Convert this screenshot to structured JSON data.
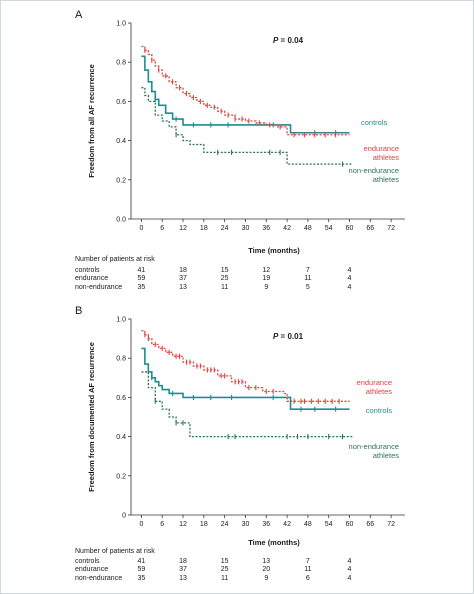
{
  "chart_data": [
    {
      "type": "line",
      "panel_label": "A",
      "title": "P = 0.04",
      "title_italic": "P",
      "title_rest": " = 0.04",
      "xlabel": "Time (months)",
      "ylabel": "Freedom from all AF recurrence",
      "xlim": [
        -3,
        76
      ],
      "ylim": [
        0,
        1.0
      ],
      "xticks": [
        0,
        6,
        12,
        18,
        24,
        30,
        36,
        42,
        48,
        54,
        60,
        66,
        72
      ],
      "yticks": [
        0.0,
        0.2,
        0.4,
        0.6,
        0.8,
        1.0
      ],
      "ytick_labels": [
        "0.0",
        "0.2",
        "0.4",
        "0.6",
        "0.8",
        "1.0"
      ],
      "series": [
        {
          "name": "controls",
          "color": "#1e8c93",
          "dash": "none",
          "width": 1.6,
          "label_lines": [
            "controls"
          ],
          "x": [
            0,
            1,
            2,
            3,
            4,
            5,
            7,
            9,
            12,
            41,
            43,
            60
          ],
          "y": [
            0.83,
            0.76,
            0.7,
            0.65,
            0.61,
            0.58,
            0.54,
            0.51,
            0.48,
            0.48,
            0.44,
            0.44
          ],
          "censored_x": [
            4,
            10,
            15,
            20,
            25,
            38,
            50,
            56
          ],
          "censored_y": [
            0.61,
            0.51,
            0.48,
            0.48,
            0.48,
            0.48,
            0.44,
            0.44
          ]
        },
        {
          "name": "endurance athletes",
          "color": "#e0423f",
          "dash": "2 1.6",
          "width": 1.3,
          "label_lines": [
            "endurance",
            "athletes"
          ],
          "x": [
            0,
            1,
            2,
            3,
            4,
            5,
            6,
            8,
            10,
            12,
            14,
            16,
            18,
            20,
            22,
            24,
            27,
            30,
            33,
            36,
            39,
            42,
            60
          ],
          "y": [
            0.88,
            0.86,
            0.84,
            0.81,
            0.78,
            0.76,
            0.73,
            0.7,
            0.67,
            0.64,
            0.62,
            0.6,
            0.58,
            0.57,
            0.55,
            0.53,
            0.51,
            0.5,
            0.49,
            0.48,
            0.47,
            0.43,
            0.43
          ],
          "censored_x": [
            1,
            3,
            5,
            7,
            9,
            11,
            13,
            15,
            17,
            19,
            21,
            23,
            25,
            27,
            29,
            31,
            34,
            37,
            40,
            44,
            47,
            50,
            53,
            56
          ],
          "censored_y": [
            0.86,
            0.81,
            0.76,
            0.73,
            0.7,
            0.67,
            0.64,
            0.62,
            0.6,
            0.58,
            0.57,
            0.55,
            0.53,
            0.51,
            0.51,
            0.5,
            0.49,
            0.48,
            0.47,
            0.43,
            0.43,
            0.43,
            0.43,
            0.43
          ]
        },
        {
          "name": "non-endurance athletes",
          "color": "#2e7357",
          "dash": "2 1.6",
          "width": 1.3,
          "label_lines": [
            "non-endurance",
            "athletes"
          ],
          "x": [
            0,
            1,
            2,
            4,
            6,
            8,
            10,
            12,
            14,
            18,
            42,
            61
          ],
          "y": [
            0.67,
            0.63,
            0.6,
            0.53,
            0.5,
            0.47,
            0.43,
            0.4,
            0.38,
            0.34,
            0.28,
            0.28
          ],
          "censored_x": [
            10,
            22,
            26,
            37,
            40,
            58
          ],
          "censored_y": [
            0.43,
            0.34,
            0.34,
            0.34,
            0.34,
            0.28
          ]
        }
      ],
      "risk_table": {
        "heading": "Number of patients at risk",
        "time_points": [
          0,
          12,
          24,
          36,
          48,
          60
        ],
        "rows": [
          {
            "label": "controls",
            "values": [
              "41",
              "18",
              "15",
              "12",
              "7",
              "4"
            ]
          },
          {
            "label": "endurance",
            "values": [
              "59",
              "37",
              "25",
              "19",
              "11",
              "4"
            ]
          },
          {
            "label": "non-endurance",
            "values": [
              "35",
              "13",
              "11",
              "9",
              "5",
              "4"
            ]
          }
        ]
      }
    },
    {
      "type": "line",
      "panel_label": "B",
      "title": "P = 0.01",
      "title_italic": "P",
      "title_rest": " = 0.01",
      "xlabel": "Time (months)",
      "ylabel": "Freedom from documented AF recurrence",
      "xlim": [
        -3,
        76
      ],
      "ylim": [
        0,
        1.0
      ],
      "xticks": [
        0,
        6,
        12,
        18,
        24,
        30,
        36,
        42,
        48,
        54,
        60,
        66,
        72
      ],
      "yticks": [
        0,
        0.2,
        0.4,
        0.6,
        0.8,
        1.0
      ],
      "ytick_labels": [
        "0",
        "0.2",
        "0.4",
        "0.6",
        "0.8",
        "1.0"
      ],
      "series": [
        {
          "name": "controls",
          "color": "#1e8c93",
          "dash": "none",
          "width": 1.6,
          "label_lines": [
            "controls"
          ],
          "x": [
            0,
            1,
            2,
            3,
            4,
            5,
            6,
            8,
            12,
            41,
            43,
            60
          ],
          "y": [
            0.85,
            0.77,
            0.73,
            0.7,
            0.68,
            0.66,
            0.64,
            0.62,
            0.6,
            0.6,
            0.54,
            0.54
          ],
          "censored_x": [
            3,
            9,
            15,
            20,
            26,
            38,
            46,
            50,
            56
          ],
          "censored_y": [
            0.7,
            0.62,
            0.6,
            0.6,
            0.6,
            0.6,
            0.54,
            0.54,
            0.54
          ]
        },
        {
          "name": "endurance athletes",
          "color": "#e0423f",
          "dash": "2 1.6",
          "width": 1.3,
          "label_lines": [
            "endurance",
            "athletes"
          ],
          "x": [
            0,
            1,
            2,
            3,
            5,
            7,
            9,
            12,
            15,
            18,
            22,
            26,
            30,
            35,
            41,
            42,
            60
          ],
          "y": [
            0.94,
            0.92,
            0.9,
            0.87,
            0.85,
            0.83,
            0.81,
            0.78,
            0.76,
            0.74,
            0.71,
            0.68,
            0.65,
            0.63,
            0.62,
            0.58,
            0.58
          ],
          "censored_x": [
            1,
            2,
            4,
            6,
            8,
            10,
            11,
            13,
            14,
            16,
            17,
            19,
            20,
            21,
            23,
            24,
            27,
            28,
            29,
            31,
            33,
            36,
            38,
            44,
            46,
            47,
            49,
            51,
            53,
            55,
            57
          ],
          "censored_y": [
            0.92,
            0.9,
            0.87,
            0.85,
            0.83,
            0.81,
            0.81,
            0.78,
            0.78,
            0.76,
            0.76,
            0.74,
            0.74,
            0.74,
            0.71,
            0.71,
            0.68,
            0.68,
            0.68,
            0.65,
            0.65,
            0.63,
            0.63,
            0.58,
            0.58,
            0.58,
            0.58,
            0.58,
            0.58,
            0.58,
            0.58
          ]
        },
        {
          "name": "non-endurance athletes",
          "color": "#2e7357",
          "dash": "2 1.6",
          "width": 1.3,
          "label_lines": [
            "non-endurance",
            "athletes"
          ],
          "x": [
            0,
            2,
            4,
            6,
            8,
            10,
            12,
            14,
            61
          ],
          "y": [
            0.73,
            0.65,
            0.58,
            0.54,
            0.5,
            0.47,
            0.47,
            0.4,
            0.4
          ],
          "censored_x": [
            4,
            10,
            12,
            25,
            27,
            42,
            45,
            48,
            54,
            58
          ],
          "censored_y": [
            0.58,
            0.47,
            0.47,
            0.4,
            0.4,
            0.4,
            0.4,
            0.4,
            0.4,
            0.4
          ]
        }
      ],
      "risk_table": {
        "heading": "Number of patients at risk",
        "time_points": [
          0,
          12,
          24,
          36,
          48,
          60
        ],
        "rows": [
          {
            "label": "controls",
            "values": [
              "41",
              "18",
              "15",
              "13",
              "7",
              "4"
            ]
          },
          {
            "label": "endurance",
            "values": [
              "59",
              "37",
              "25",
              "20",
              "11",
              "4"
            ]
          },
          {
            "label": "non-endurance",
            "values": [
              "35",
              "13",
              "11",
              "9",
              "6",
              "4"
            ]
          }
        ]
      }
    }
  ]
}
